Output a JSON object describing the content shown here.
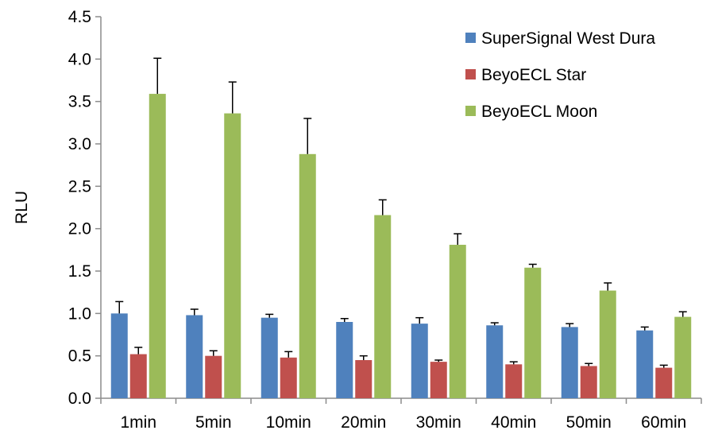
{
  "chart_data": {
    "type": "bar",
    "title": "",
    "xlabel": "",
    "ylabel": "RLU",
    "ylim": [
      0,
      4.5
    ],
    "ytick_step": 0.5,
    "ytick_labels": [
      "0.0",
      "0.5",
      "1.0",
      "1.5",
      "2.0",
      "2.5",
      "3.0",
      "3.5",
      "4.0",
      "4.5"
    ],
    "grid": false,
    "legend_position": "top-right",
    "categories": [
      "1min",
      "5min",
      "10min",
      "20min",
      "30min",
      "40min",
      "50min",
      "60min"
    ],
    "series": [
      {
        "name": "SuperSignal West Dura",
        "color": "#4F81BD",
        "values": [
          1.0,
          0.98,
          0.95,
          0.9,
          0.88,
          0.86,
          0.84,
          0.8
        ],
        "errors": [
          0.14,
          0.07,
          0.04,
          0.04,
          0.07,
          0.03,
          0.04,
          0.04
        ]
      },
      {
        "name": "BeyoECL Star",
        "color": "#C0504D",
        "values": [
          0.52,
          0.5,
          0.48,
          0.45,
          0.43,
          0.4,
          0.38,
          0.36
        ],
        "errors": [
          0.08,
          0.06,
          0.07,
          0.05,
          0.02,
          0.03,
          0.03,
          0.03
        ]
      },
      {
        "name": "BeyoECL Moon",
        "color": "#9BBB59",
        "values": [
          3.59,
          3.36,
          2.88,
          2.16,
          1.81,
          1.54,
          1.27,
          0.96
        ],
        "errors": [
          0.42,
          0.37,
          0.42,
          0.18,
          0.13,
          0.04,
          0.09,
          0.06
        ]
      }
    ]
  }
}
